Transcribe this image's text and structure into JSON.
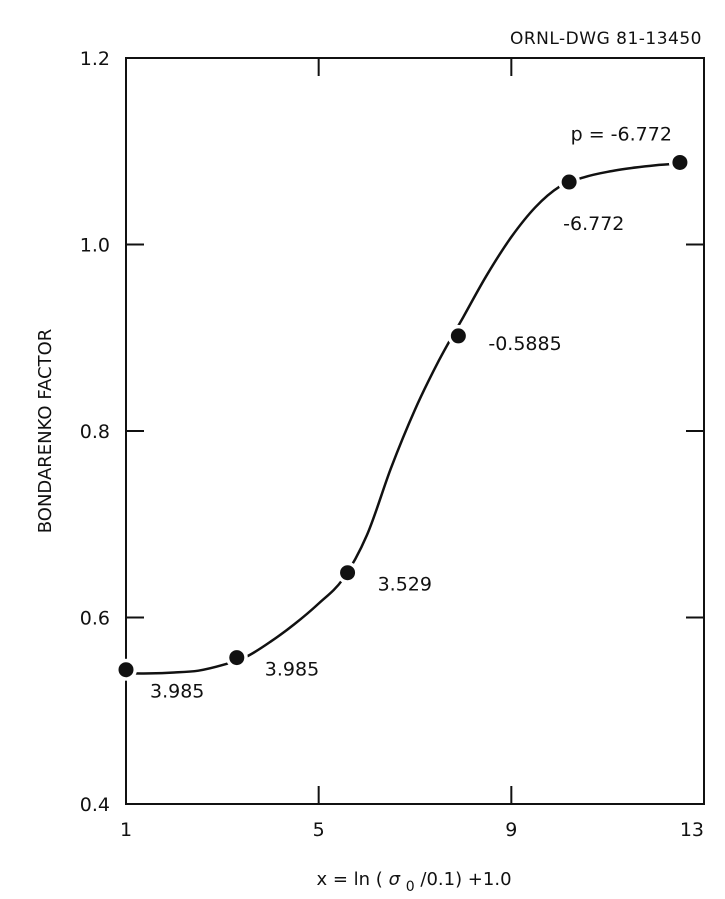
{
  "drawing_id": "ORNL-DWG 81-13450",
  "chart_data": {
    "type": "line",
    "ylabel": "BONDARENKO FACTOR",
    "xlabel": {
      "prefix": "x = ln",
      "sigma": "σ",
      "sub": "0",
      "suffix": "/0.1) +1.0"
    },
    "xlim": [
      1,
      13
    ],
    "ylim": [
      0.4,
      1.2
    ],
    "x_ticks": [
      1,
      5,
      9,
      13
    ],
    "y_ticks": [
      0.4,
      0.6,
      0.8,
      1.0,
      1.2
    ],
    "y_tick_labels": [
      "0.4",
      "0.6",
      "0.8",
      "1.0",
      "1.2"
    ],
    "x_tick_labels": [
      "1",
      "5",
      "9",
      "13"
    ],
    "grid": false,
    "points": [
      {
        "x": 1.0,
        "y": 0.544,
        "label": "3.985"
      },
      {
        "x": 3.3,
        "y": 0.557,
        "label": "3.985"
      },
      {
        "x": 5.6,
        "y": 0.648,
        "label": "3.529"
      },
      {
        "x": 7.9,
        "y": 0.902,
        "label": "-0.5885"
      },
      {
        "x": 10.2,
        "y": 1.067,
        "label": "-6.772"
      },
      {
        "x": 12.5,
        "y": 1.088,
        "label": "p = -6.772"
      }
    ],
    "curve": [
      [
        1.0,
        0.54
      ],
      [
        1.5,
        0.54
      ],
      [
        2.0,
        0.541
      ],
      [
        2.5,
        0.543
      ],
      [
        3.0,
        0.549
      ],
      [
        3.5,
        0.558
      ],
      [
        4.0,
        0.574
      ],
      [
        4.5,
        0.593
      ],
      [
        5.0,
        0.615
      ],
      [
        5.5,
        0.641
      ],
      [
        6.0,
        0.688
      ],
      [
        6.5,
        0.76
      ],
      [
        7.0,
        0.823
      ],
      [
        7.5,
        0.876
      ],
      [
        8.0,
        0.922
      ],
      [
        8.5,
        0.968
      ],
      [
        9.0,
        1.008
      ],
      [
        9.5,
        1.04
      ],
      [
        10.0,
        1.062
      ],
      [
        10.5,
        1.072
      ],
      [
        11.0,
        1.078
      ],
      [
        11.5,
        1.082
      ],
      [
        12.0,
        1.085
      ],
      [
        12.5,
        1.087
      ]
    ]
  }
}
